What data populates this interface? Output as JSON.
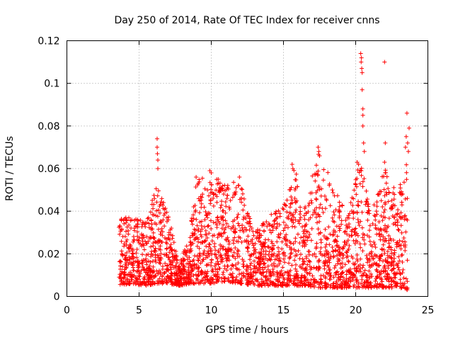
{
  "chart_data": {
    "type": "scatter",
    "title": "Day 250 of 2014, Rate Of TEC Index for receiver cnns",
    "xlabel": "GPS time / hours",
    "ylabel": "ROTI / TECUs",
    "xlim": [
      0,
      25
    ],
    "ylim": [
      0,
      0.12
    ],
    "xticks": [
      0,
      5,
      10,
      15,
      20,
      25
    ],
    "xtick_labels": [
      "0",
      "5",
      "10",
      "15",
      "20",
      "25"
    ],
    "yticks": [
      0,
      0.02,
      0.04,
      0.06,
      0.08,
      0.1,
      0.12
    ],
    "ytick_labels": [
      "0",
      "0.02",
      "0.04",
      "0.06",
      "0.08",
      "0.1",
      "0.12"
    ],
    "grid": true,
    "marker": "+",
    "color": "#ff0000",
    "series": [
      {
        "name": "ROTI",
        "description_visible": false,
        "envelope": [
          {
            "x": 3.6,
            "lo": 0.005,
            "hi": 0.04
          },
          {
            "x": 4.5,
            "lo": 0.006,
            "hi": 0.036
          },
          {
            "x": 5.5,
            "lo": 0.005,
            "hi": 0.038
          },
          {
            "x": 6.2,
            "lo": 0.006,
            "hi": 0.052
          },
          {
            "x": 7.0,
            "lo": 0.006,
            "hi": 0.04
          },
          {
            "x": 7.8,
            "lo": 0.005,
            "hi": 0.015
          },
          {
            "x": 8.5,
            "lo": 0.006,
            "hi": 0.03
          },
          {
            "x": 9.0,
            "lo": 0.006,
            "hi": 0.056
          },
          {
            "x": 10.0,
            "lo": 0.006,
            "hi": 0.058
          },
          {
            "x": 11.0,
            "lo": 0.007,
            "hi": 0.052
          },
          {
            "x": 12.0,
            "lo": 0.006,
            "hi": 0.055
          },
          {
            "x": 13.0,
            "lo": 0.005,
            "hi": 0.03
          },
          {
            "x": 14.0,
            "lo": 0.005,
            "hi": 0.038
          },
          {
            "x": 15.0,
            "lo": 0.005,
            "hi": 0.042
          },
          {
            "x": 15.7,
            "lo": 0.005,
            "hi": 0.062
          },
          {
            "x": 16.5,
            "lo": 0.005,
            "hi": 0.045
          },
          {
            "x": 17.5,
            "lo": 0.004,
            "hi": 0.07
          },
          {
            "x": 18.5,
            "lo": 0.004,
            "hi": 0.05
          },
          {
            "x": 19.5,
            "lo": 0.004,
            "hi": 0.04
          },
          {
            "x": 20.3,
            "lo": 0.004,
            "hi": 0.066
          },
          {
            "x": 21.0,
            "lo": 0.004,
            "hi": 0.04
          },
          {
            "x": 22.0,
            "lo": 0.004,
            "hi": 0.06
          },
          {
            "x": 23.0,
            "lo": 0.004,
            "hi": 0.05
          },
          {
            "x": 23.6,
            "lo": 0.003,
            "hi": 0.075
          }
        ],
        "outliers": [
          {
            "x": 6.25,
            "y": 0.074
          },
          {
            "x": 6.25,
            "y": 0.07
          },
          {
            "x": 6.27,
            "y": 0.067
          },
          {
            "x": 6.3,
            "y": 0.064
          },
          {
            "x": 6.3,
            "y": 0.06
          },
          {
            "x": 20.35,
            "y": 0.114
          },
          {
            "x": 20.4,
            "y": 0.112
          },
          {
            "x": 20.38,
            "y": 0.11
          },
          {
            "x": 20.42,
            "y": 0.107
          },
          {
            "x": 20.45,
            "y": 0.105
          },
          {
            "x": 20.45,
            "y": 0.097
          },
          {
            "x": 20.5,
            "y": 0.088
          },
          {
            "x": 20.5,
            "y": 0.085
          },
          {
            "x": 20.5,
            "y": 0.08
          },
          {
            "x": 20.55,
            "y": 0.072
          },
          {
            "x": 20.6,
            "y": 0.068
          },
          {
            "x": 22.0,
            "y": 0.11
          },
          {
            "x": 22.05,
            "y": 0.072
          },
          {
            "x": 22.0,
            "y": 0.063
          },
          {
            "x": 22.05,
            "y": 0.058
          },
          {
            "x": 23.55,
            "y": 0.086
          },
          {
            "x": 23.7,
            "y": 0.079
          },
          {
            "x": 23.5,
            "y": 0.075
          },
          {
            "x": 23.6,
            "y": 0.072
          },
          {
            "x": 23.65,
            "y": 0.068
          },
          {
            "x": 23.45,
            "y": 0.07
          },
          {
            "x": 17.4,
            "y": 0.07
          },
          {
            "x": 17.45,
            "y": 0.068
          },
          {
            "x": 17.5,
            "y": 0.066
          },
          {
            "x": 15.6,
            "y": 0.062
          },
          {
            "x": 15.65,
            "y": 0.06
          },
          {
            "x": 9.9,
            "y": 0.059
          },
          {
            "x": 10.0,
            "y": 0.058
          },
          {
            "x": 11.95,
            "y": 0.056
          },
          {
            "x": 8.95,
            "y": 0.056
          },
          {
            "x": 20.1,
            "y": 0.063
          },
          {
            "x": 20.2,
            "y": 0.062
          }
        ]
      }
    ]
  }
}
